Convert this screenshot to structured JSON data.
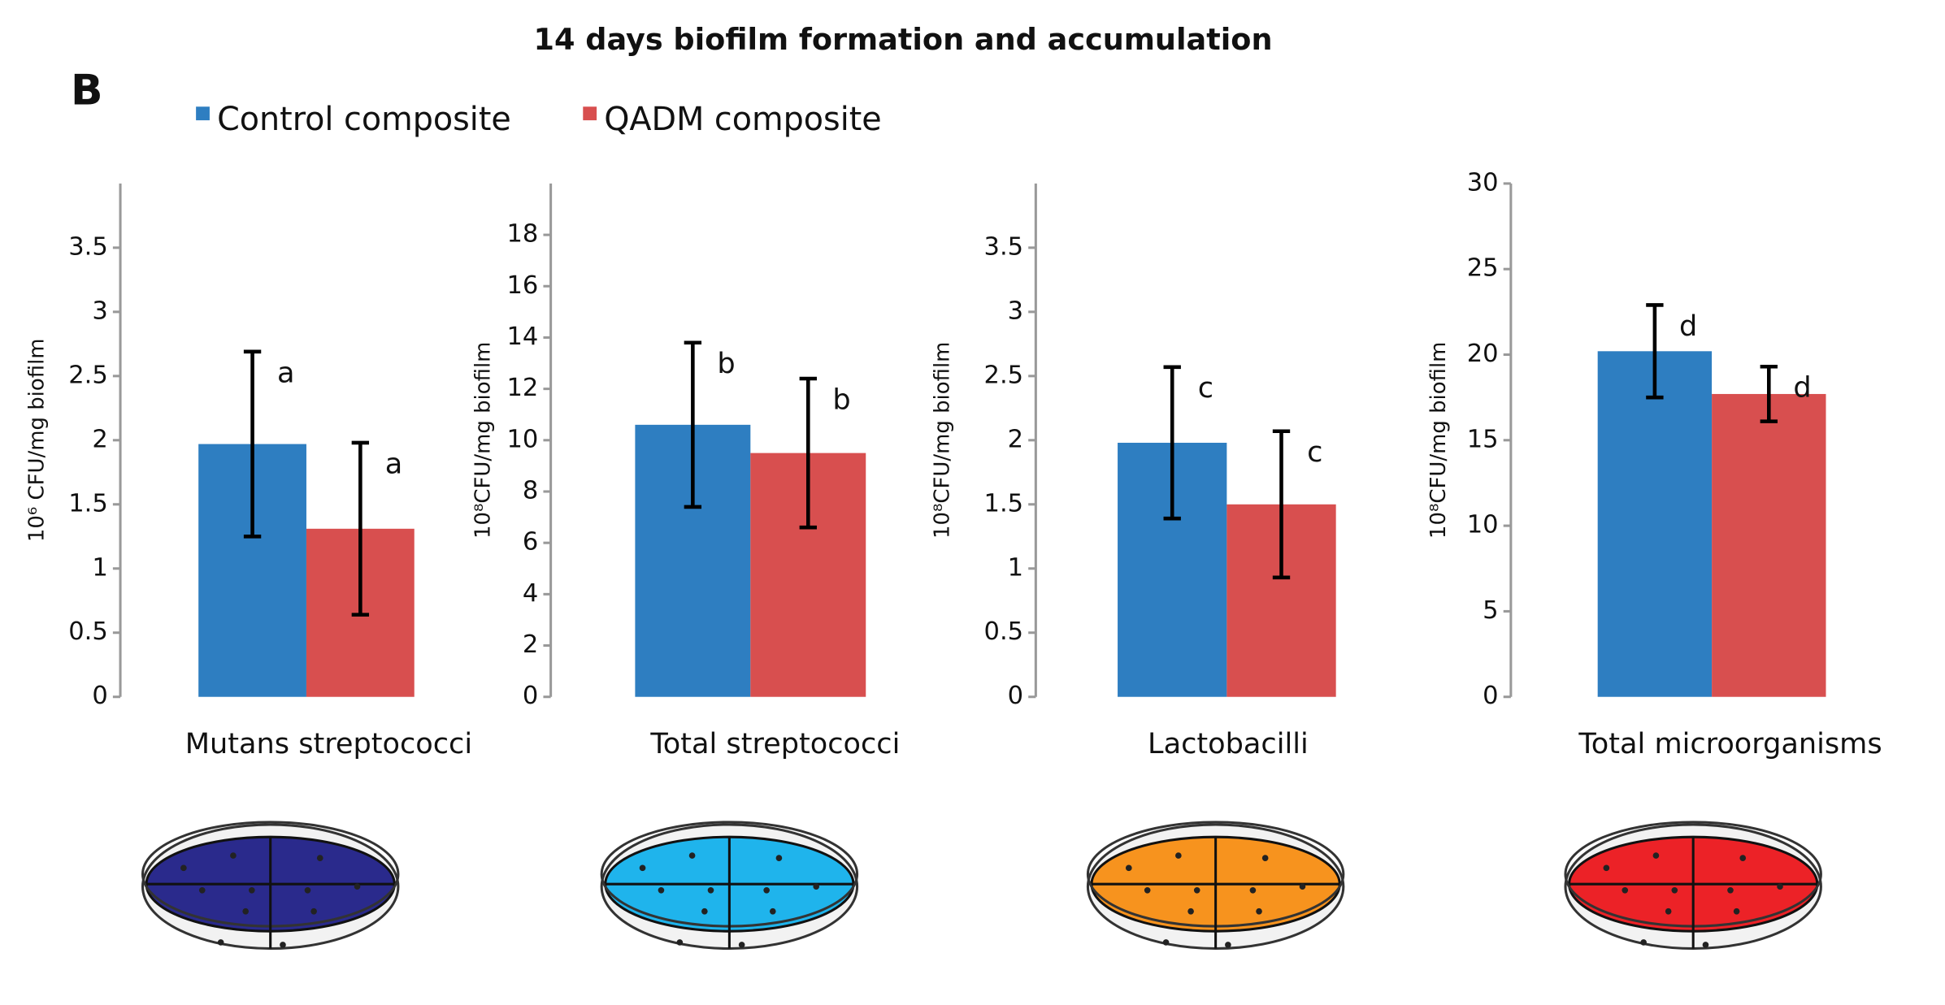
{
  "title": "14 days biofilm formation and accumulation",
  "panel_label": "B",
  "legend": [
    {
      "name": "Control composite",
      "color": "#2e7ec1"
    },
    {
      "name": "QADM composite",
      "color": "#d84f4f"
    }
  ],
  "chart_data": [
    {
      "type": "bar",
      "ylabel": "10⁶ CFU/mg biofilm",
      "categories": [
        "Mutans streptococci"
      ],
      "ylim": [
        0,
        4
      ],
      "yticks": [
        0,
        0.5,
        1,
        1.5,
        2,
        2.5,
        3,
        3.5
      ],
      "series": [
        {
          "values": [
            1.97
          ],
          "errors": [
            0.72
          ],
          "letters": [
            "a"
          ]
        },
        {
          "values": [
            1.31
          ],
          "errors": [
            0.67
          ],
          "letters": [
            "a"
          ]
        }
      ]
    },
    {
      "type": "bar",
      "ylabel": "10⁸CFU/mg biofilm",
      "categories": [
        "Total streptococci"
      ],
      "ylim": [
        0,
        20
      ],
      "yticks": [
        0,
        2,
        4,
        6,
        8,
        10,
        12,
        14,
        16,
        18
      ],
      "series": [
        {
          "values": [
            10.6
          ],
          "errors": [
            3.2
          ],
          "letters": [
            "b"
          ]
        },
        {
          "values": [
            9.5
          ],
          "errors": [
            2.9
          ],
          "letters": [
            "b"
          ]
        }
      ]
    },
    {
      "type": "bar",
      "ylabel": "10⁸CFU/mg biofilm",
      "categories": [
        "Lactobacilli"
      ],
      "ylim": [
        0,
        4
      ],
      "yticks": [
        0,
        0.5,
        1,
        1.5,
        2,
        2.5,
        3,
        3.5
      ],
      "series": [
        {
          "values": [
            1.98
          ],
          "errors": [
            0.59
          ],
          "letters": [
            "c"
          ]
        },
        {
          "values": [
            1.5
          ],
          "errors": [
            0.57
          ],
          "letters": [
            "c"
          ]
        }
      ]
    },
    {
      "type": "bar",
      "ylabel": "10⁸CFU/mg biofilm",
      "categories": [
        "Total microorganisms"
      ],
      "ylim": [
        0,
        30
      ],
      "yticks": [
        0,
        5,
        10,
        15,
        20,
        25,
        30
      ],
      "series": [
        {
          "values": [
            20.2
          ],
          "errors": [
            2.7
          ],
          "letters": [
            "d"
          ]
        },
        {
          "values": [
            17.7
          ],
          "errors": [
            1.6
          ],
          "letters": [
            "d"
          ]
        }
      ]
    }
  ]
}
